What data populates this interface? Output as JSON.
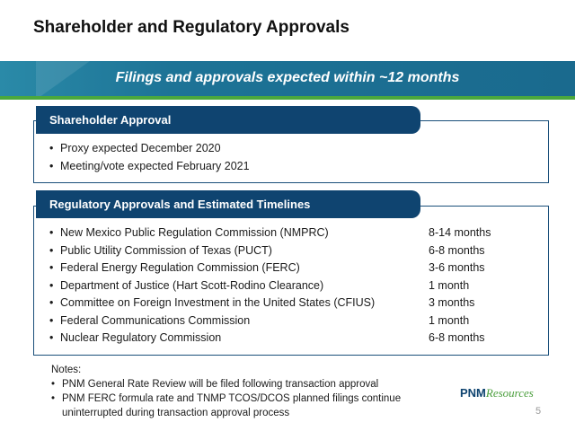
{
  "title": "Shareholder and Regulatory Approvals",
  "banner": "Filings and approvals expected within ~12 months",
  "shareholder": {
    "heading": "Shareholder Approval",
    "items": [
      "Proxy expected December 2020",
      "Meeting/vote expected February 2021"
    ]
  },
  "regulatory": {
    "heading": "Regulatory Approvals and Estimated Timelines",
    "items": [
      {
        "name": "New Mexico Public Regulation Commission (NMPRC)",
        "duration": "8-14 months"
      },
      {
        "name": "Public Utility Commission of Texas (PUCT)",
        "duration": "6-8 months"
      },
      {
        "name": "Federal Energy Regulation Commission (FERC)",
        "duration": "3-6 months"
      },
      {
        "name": "Department of Justice (Hart Scott-Rodino Clearance)",
        "duration": "1 month"
      },
      {
        "name": "Committee on Foreign Investment in the United States (CFIUS)",
        "duration": "3 months"
      },
      {
        "name": "Federal Communications Commission",
        "duration": "1 month"
      },
      {
        "name": "Nuclear Regulatory Commission",
        "duration": "6-8 months"
      }
    ]
  },
  "notes": {
    "label": "Notes:",
    "items": [
      "PNM General Rate Review will be filed following transaction approval",
      "PNM FERC formula rate and TNMP TCOS/DCOS planned filings continue uninterrupted during transaction approval process"
    ]
  },
  "logo": {
    "primary": "PNM",
    "secondary": "Resources"
  },
  "page_number": "5",
  "colors": {
    "navy": "#0f4470",
    "teal": "#1d7396",
    "green": "#4aa83d"
  }
}
